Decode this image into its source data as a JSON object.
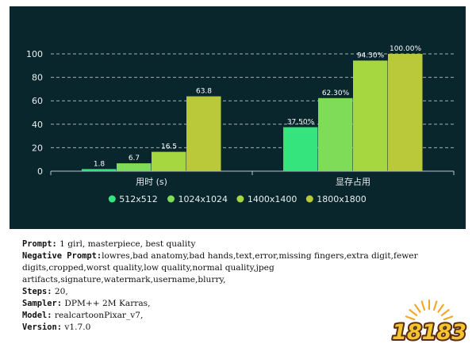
{
  "chart_data": {
    "type": "bar",
    "categories": [
      "用时 (s)",
      "显存占用"
    ],
    "series": [
      {
        "name": "512x512",
        "values": [
          1.8,
          37.5
        ],
        "labels": [
          "1.8",
          "37.50%"
        ],
        "color": "#36e47e"
      },
      {
        "name": "1024x1024",
        "values": [
          6.7,
          62.3
        ],
        "labels": [
          "6.7",
          "62.30%"
        ],
        "color": "#7edc58"
      },
      {
        "name": "1400x1400",
        "values": [
          16.5,
          94.3
        ],
        "labels": [
          "16.5",
          "94.30%"
        ],
        "color": "#a6d640"
      },
      {
        "name": "1800x1800",
        "values": [
          63.8,
          100.0
        ],
        "labels": [
          "63.8",
          "100.00%"
        ],
        "color": "#bac93a"
      }
    ],
    "yticks": [
      "0",
      "20",
      "40",
      "60",
      "80",
      "100"
    ],
    "ylim": [
      0,
      100
    ],
    "grid": true,
    "legend_position": "bottom",
    "background": "#09262c"
  },
  "caption": {
    "prompt_label": "Prompt:",
    "prompt_value": " 1 girl, masterpiece, best quality",
    "negative_label": "Negative Prompt:",
    "negative_value": "lowres,bad anatomy,bad hands,text,error,missing fingers,extra digit,fewer digits,cropped,worst quality,low quality,normal quality,jpeg artifacts,signature,watermark,username,blurry,",
    "steps_label": "Steps:",
    "steps_value": " 20,",
    "sampler_label": "Sampler:",
    "sampler_value": " DPM++ 2M Karras,",
    "model_label": "Model:",
    "model_value": " realcartoonPixar_v7,",
    "version_label": "Version:",
    "version_value": " v1.7.0"
  },
  "logo": {
    "text": "18183",
    "colors": {
      "fill": "#f2c531",
      "stroke": "#5a2a0e",
      "burst": "#f0a92a"
    }
  }
}
